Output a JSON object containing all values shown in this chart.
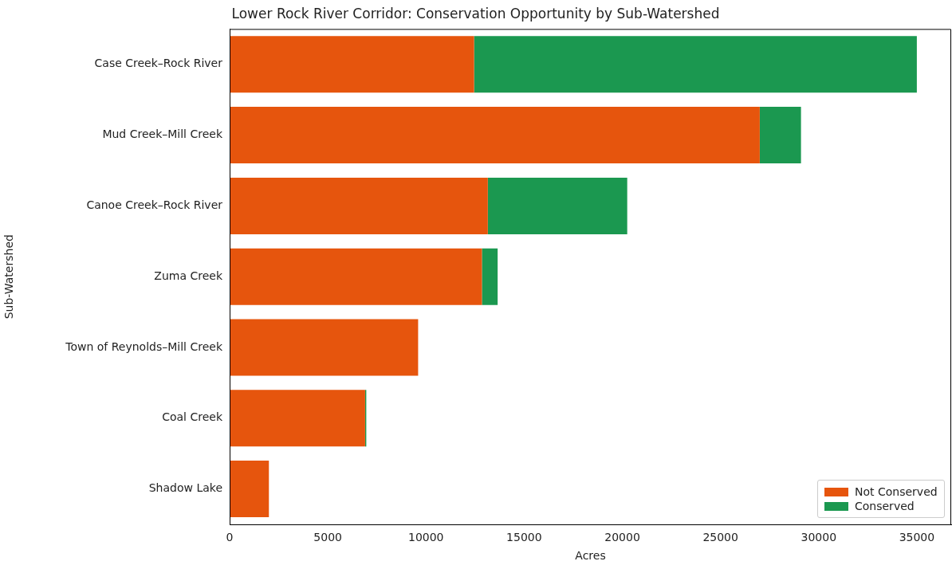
{
  "chart_data": {
    "type": "bar",
    "orientation": "horizontal",
    "stacked": true,
    "title": "Lower Rock River Corridor: Conservation Opportunity by Sub-Watershed",
    "xlabel": "Acres",
    "ylabel": "Sub-Watershed",
    "categories": [
      "Case Creek–Rock River",
      "Mud Creek–Mill Creek",
      "Canoe Creek–Rock River",
      "Zuma Creek",
      "Town of Reynolds–Mill Creek",
      "Coal Creek",
      "Shadow Lake"
    ],
    "series": [
      {
        "name": "Not Conserved",
        "color": "#e6550d",
        "values": [
          12450,
          27000,
          13150,
          12850,
          9600,
          6900,
          2000
        ]
      },
      {
        "name": "Conserved",
        "color": "#1b9850",
        "values": [
          22550,
          2100,
          7100,
          800,
          0,
          60,
          0
        ]
      }
    ],
    "xlim": [
      0,
      36750
    ],
    "xticks": [
      0,
      5000,
      10000,
      15000,
      20000,
      25000,
      30000,
      35000
    ],
    "grid": false,
    "legend": "bottom right"
  }
}
